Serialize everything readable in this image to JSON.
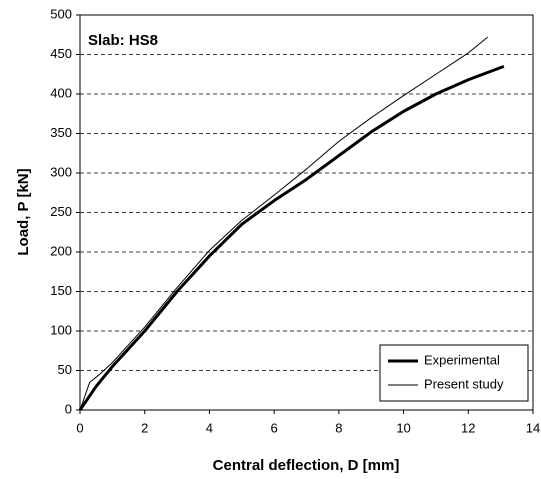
{
  "chart_data": {
    "type": "line",
    "annotation": "Slab: HS8",
    "x_label": "Central deflection, D [mm]",
    "y_label": "Load, P [kN]",
    "xlim": [
      0,
      14
    ],
    "xticks": [
      0,
      2,
      4,
      6,
      8,
      10,
      12,
      14
    ],
    "ylim": [
      0,
      500
    ],
    "yticks": [
      0,
      50,
      100,
      150,
      200,
      250,
      300,
      350,
      400,
      450,
      500
    ],
    "grid": true,
    "legend": "lower right",
    "series": [
      {
        "name": "Experimental",
        "color": "#000000",
        "line_width": 3,
        "x": [
          0,
          0.5,
          1,
          2,
          3,
          4,
          5,
          6,
          7,
          8,
          9,
          10,
          11,
          12,
          13.1
        ],
        "values": [
          0,
          30,
          55,
          100,
          150,
          195,
          235,
          265,
          292,
          322,
          352,
          378,
          400,
          418,
          435
        ]
      },
      {
        "name": "Present study",
        "color": "#000000",
        "line_width": 1,
        "x": [
          0,
          0.3,
          0.6,
          1,
          2,
          3,
          4,
          5,
          6,
          7,
          8,
          9,
          10,
          11,
          12,
          12.6
        ],
        "values": [
          0,
          35,
          45,
          60,
          105,
          155,
          202,
          240,
          272,
          305,
          340,
          370,
          398,
          425,
          452,
          472
        ]
      }
    ]
  }
}
